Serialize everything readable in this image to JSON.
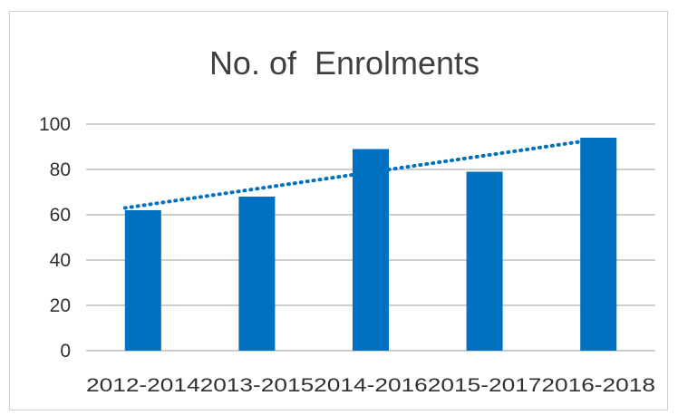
{
  "chart_data": {
    "type": "bar",
    "title": "No. of  Enrolments",
    "categories": [
      "2012-2014",
      "2013-2015",
      "2014-2016",
      "2015-2017",
      "2016-2018"
    ],
    "series": [
      {
        "values": [
          62,
          68,
          89,
          79,
          94
        ]
      }
    ],
    "trendline": {
      "type": "linear",
      "style": "dotted",
      "start": 63,
      "end": 92.5
    },
    "yticks": [
      "0",
      "20",
      "40",
      "60",
      "80",
      "100"
    ],
    "ylim": [
      0,
      100
    ],
    "xlabel": "",
    "ylabel": "",
    "grid": true,
    "legend": "none",
    "colors": {
      "bar": "#0070c0",
      "trend": "#0070c0",
      "grid": "#bfbfbf",
      "border": "#cfcfcf"
    }
  }
}
